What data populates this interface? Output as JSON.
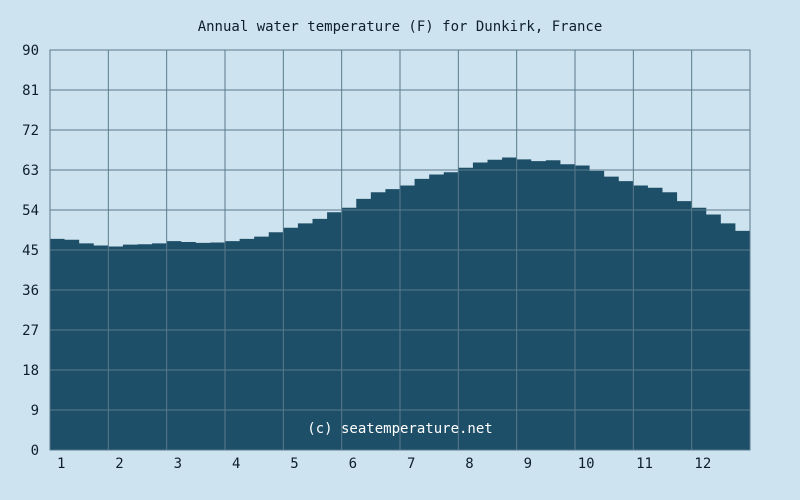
{
  "chart_data": {
    "type": "area",
    "title": "Annual water temperature (F) for Dunkirk, France",
    "xlabel": "",
    "ylabel": "",
    "ylim": [
      0,
      90
    ],
    "yticks": [
      0,
      9,
      18,
      27,
      36,
      45,
      54,
      63,
      72,
      81,
      90
    ],
    "xlim": [
      0.5,
      12.5
    ],
    "xticks": [
      1,
      2,
      3,
      4,
      5,
      6,
      7,
      8,
      9,
      10,
      11,
      12
    ],
    "grid": true,
    "legend": "none",
    "credit": "(c) seatemperature.net",
    "series": [
      {
        "x": [
          0.5,
          0.75,
          1.0,
          1.25,
          1.5,
          1.75,
          2.0,
          2.25,
          2.5,
          2.75,
          3.0,
          3.25,
          3.5,
          3.75,
          4.0,
          4.25,
          4.5,
          4.75,
          5.0,
          5.25,
          5.5,
          5.75,
          6.0,
          6.25,
          6.5,
          6.75,
          7.0,
          7.25,
          7.5,
          7.75,
          8.0,
          8.25,
          8.5,
          8.75,
          9.0,
          9.25,
          9.5,
          9.75,
          10.0,
          10.25,
          10.5,
          10.75,
          11.0,
          11.25,
          11.5,
          11.75,
          12.0,
          12.25,
          12.5
        ],
        "values": [
          47.5,
          47.3,
          46.5,
          46.0,
          45.8,
          46.2,
          46.3,
          46.5,
          47.0,
          46.8,
          46.6,
          46.7,
          47.0,
          47.5,
          48.0,
          49.0,
          50.0,
          51.0,
          52.0,
          53.5,
          54.5,
          56.5,
          58.0,
          58.7,
          59.5,
          61.0,
          62.0,
          62.5,
          63.5,
          64.7,
          65.3,
          65.8,
          65.4,
          65.0,
          65.2,
          64.3,
          64.0,
          62.8,
          61.5,
          60.5,
          59.5,
          59.0,
          58.0,
          56.0,
          54.5,
          53.0,
          51.0,
          49.3,
          48.5
        ]
      }
    ],
    "colors": {
      "page_background": "#cde3ef",
      "fill": "#1e4f69",
      "grid": "#5a7a8c",
      "text": "#0e1e2c",
      "credit": "#ffffff"
    }
  }
}
